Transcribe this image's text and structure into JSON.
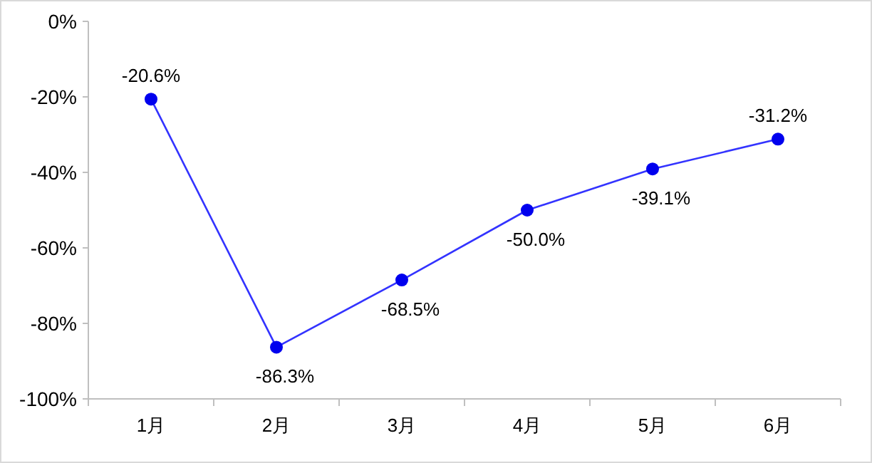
{
  "chart_data": {
    "type": "line",
    "categories": [
      "1月",
      "2月",
      "3月",
      "4月",
      "5月",
      "6月"
    ],
    "series": [
      {
        "color": "#3333ff",
        "values": [
          -20.6,
          -86.3,
          -68.5,
          -50.0,
          -39.1,
          -31.2
        ],
        "value_labels": [
          "-20.6%",
          "-86.3%",
          "-68.5%",
          "-50.0%",
          "-39.1%",
          "-31.2%"
        ]
      }
    ],
    "ylim": [
      -100,
      0
    ],
    "yticks": [
      {
        "value": 0,
        "label": "0%"
      },
      {
        "value": -20,
        "label": "-20%"
      },
      {
        "value": -40,
        "label": "-40%"
      },
      {
        "value": -60,
        "label": "-60%"
      },
      {
        "value": -80,
        "label": "-80%"
      },
      {
        "value": -100,
        "label": "-100%"
      }
    ],
    "marker": "circle",
    "line_style": "solid"
  }
}
